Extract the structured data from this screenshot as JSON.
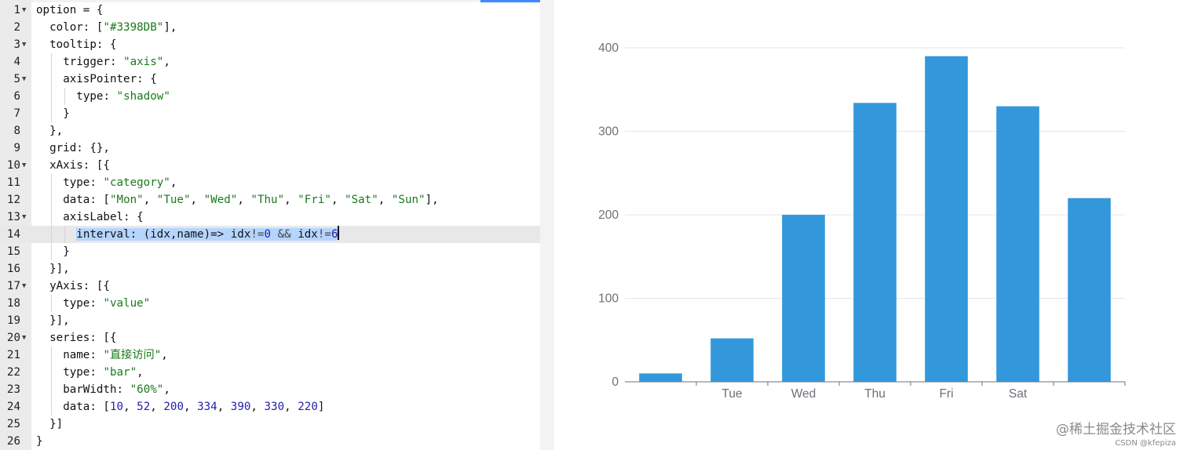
{
  "editor": {
    "lines": [
      {
        "n": "1",
        "fold": true,
        "indent": 0,
        "tokens": [
          [
            "p",
            "option = {"
          ]
        ]
      },
      {
        "n": "2",
        "fold": false,
        "indent": 1,
        "tokens": [
          [
            "p",
            "color: ["
          ],
          [
            "s",
            "\"#3398DB\""
          ],
          [
            "p",
            "],"
          ]
        ]
      },
      {
        "n": "3",
        "fold": true,
        "indent": 1,
        "tokens": [
          [
            "p",
            "tooltip: {"
          ]
        ]
      },
      {
        "n": "4",
        "fold": false,
        "indent": 2,
        "tokens": [
          [
            "p",
            "trigger: "
          ],
          [
            "s",
            "\"axis\""
          ],
          [
            "p",
            ","
          ]
        ]
      },
      {
        "n": "5",
        "fold": true,
        "indent": 2,
        "tokens": [
          [
            "p",
            "axisPointer: {"
          ]
        ]
      },
      {
        "n": "6",
        "fold": false,
        "indent": 3,
        "tokens": [
          [
            "p",
            "type: "
          ],
          [
            "s",
            "\"shadow\""
          ]
        ]
      },
      {
        "n": "7",
        "fold": false,
        "indent": 2,
        "tokens": [
          [
            "p",
            "}"
          ]
        ]
      },
      {
        "n": "8",
        "fold": false,
        "indent": 1,
        "tokens": [
          [
            "p",
            "},"
          ]
        ]
      },
      {
        "n": "9",
        "fold": false,
        "indent": 1,
        "tokens": [
          [
            "p",
            "grid: {},"
          ]
        ]
      },
      {
        "n": "10",
        "fold": true,
        "indent": 1,
        "tokens": [
          [
            "p",
            "xAxis: [{"
          ]
        ]
      },
      {
        "n": "11",
        "fold": false,
        "indent": 2,
        "tokens": [
          [
            "p",
            "type: "
          ],
          [
            "s",
            "\"category\""
          ],
          [
            "p",
            ","
          ]
        ]
      },
      {
        "n": "12",
        "fold": false,
        "indent": 2,
        "tokens": [
          [
            "p",
            "data: ["
          ],
          [
            "s",
            "\"Mon\""
          ],
          [
            "p",
            ", "
          ],
          [
            "s",
            "\"Tue\""
          ],
          [
            "p",
            ", "
          ],
          [
            "s",
            "\"Wed\""
          ],
          [
            "p",
            ", "
          ],
          [
            "s",
            "\"Thu\""
          ],
          [
            "p",
            ", "
          ],
          [
            "s",
            "\"Fri\""
          ],
          [
            "p",
            ", "
          ],
          [
            "s",
            "\"Sat\""
          ],
          [
            "p",
            ", "
          ],
          [
            "s",
            "\"Sun\""
          ],
          [
            "p",
            "],"
          ]
        ]
      },
      {
        "n": "13",
        "fold": true,
        "indent": 2,
        "tokens": [
          [
            "p",
            "axisLabel: {"
          ]
        ]
      },
      {
        "n": "14",
        "fold": false,
        "indent": 3,
        "active": true,
        "selected": true,
        "tokens": [
          [
            "p",
            "interval: (idx,name)=> idx"
          ],
          [
            "o",
            "!="
          ],
          [
            "u",
            "0"
          ],
          [
            "p",
            " "
          ],
          [
            "o",
            "&&"
          ],
          [
            "p",
            " idx"
          ],
          [
            "o",
            "!="
          ],
          [
            "u",
            "6"
          ]
        ]
      },
      {
        "n": "15",
        "fold": false,
        "indent": 2,
        "tokens": [
          [
            "p",
            "}"
          ]
        ]
      },
      {
        "n": "16",
        "fold": false,
        "indent": 1,
        "tokens": [
          [
            "p",
            "}],"
          ]
        ]
      },
      {
        "n": "17",
        "fold": true,
        "indent": 1,
        "tokens": [
          [
            "p",
            "yAxis: [{"
          ]
        ]
      },
      {
        "n": "18",
        "fold": false,
        "indent": 2,
        "tokens": [
          [
            "p",
            "type: "
          ],
          [
            "s",
            "\"value\""
          ]
        ]
      },
      {
        "n": "19",
        "fold": false,
        "indent": 1,
        "tokens": [
          [
            "p",
            "}],"
          ]
        ]
      },
      {
        "n": "20",
        "fold": true,
        "indent": 1,
        "tokens": [
          [
            "p",
            "series: [{"
          ]
        ]
      },
      {
        "n": "21",
        "fold": false,
        "indent": 2,
        "tokens": [
          [
            "p",
            "name: "
          ],
          [
            "s",
            "\"直接访问\""
          ],
          [
            "p",
            ","
          ]
        ]
      },
      {
        "n": "22",
        "fold": false,
        "indent": 2,
        "tokens": [
          [
            "p",
            "type: "
          ],
          [
            "s",
            "\"bar\""
          ],
          [
            "p",
            ","
          ]
        ]
      },
      {
        "n": "23",
        "fold": false,
        "indent": 2,
        "tokens": [
          [
            "p",
            "barWidth: "
          ],
          [
            "s",
            "\"60%\""
          ],
          [
            "p",
            ","
          ]
        ]
      },
      {
        "n": "24",
        "fold": false,
        "indent": 2,
        "tokens": [
          [
            "p",
            "data: ["
          ],
          [
            "u",
            "10"
          ],
          [
            "p",
            ", "
          ],
          [
            "u",
            "52"
          ],
          [
            "p",
            ", "
          ],
          [
            "u",
            "200"
          ],
          [
            "p",
            ", "
          ],
          [
            "u",
            "334"
          ],
          [
            "p",
            ", "
          ],
          [
            "u",
            "390"
          ],
          [
            "p",
            ", "
          ],
          [
            "u",
            "330"
          ],
          [
            "p",
            ", "
          ],
          [
            "u",
            "220"
          ],
          [
            "p",
            "]"
          ]
        ]
      },
      {
        "n": "25",
        "fold": false,
        "indent": 1,
        "tokens": [
          [
            "p",
            "}]"
          ]
        ]
      },
      {
        "n": "26",
        "fold": false,
        "indent": 0,
        "tokens": [
          [
            "p",
            "}"
          ]
        ]
      }
    ]
  },
  "colors": {
    "bar": "#3398DB",
    "gridline": "#e0e6f1",
    "axis": "#6e7079"
  },
  "chart_data": {
    "type": "bar",
    "categories": [
      "Mon",
      "Tue",
      "Wed",
      "Thu",
      "Fri",
      "Sat",
      "Sun"
    ],
    "category_labels_shown": [
      "",
      "Tue",
      "Wed",
      "Thu",
      "Fri",
      "Sat",
      ""
    ],
    "values": [
      10,
      52,
      200,
      334,
      390,
      330,
      220
    ],
    "yticks": [
      "0",
      "100",
      "200",
      "300",
      "400"
    ],
    "ylim": [
      0,
      400
    ],
    "grid": true,
    "legend": "none"
  },
  "watermark": {
    "main": "@稀土掘金技术社区",
    "sub": "CSDN @kfepiza"
  }
}
